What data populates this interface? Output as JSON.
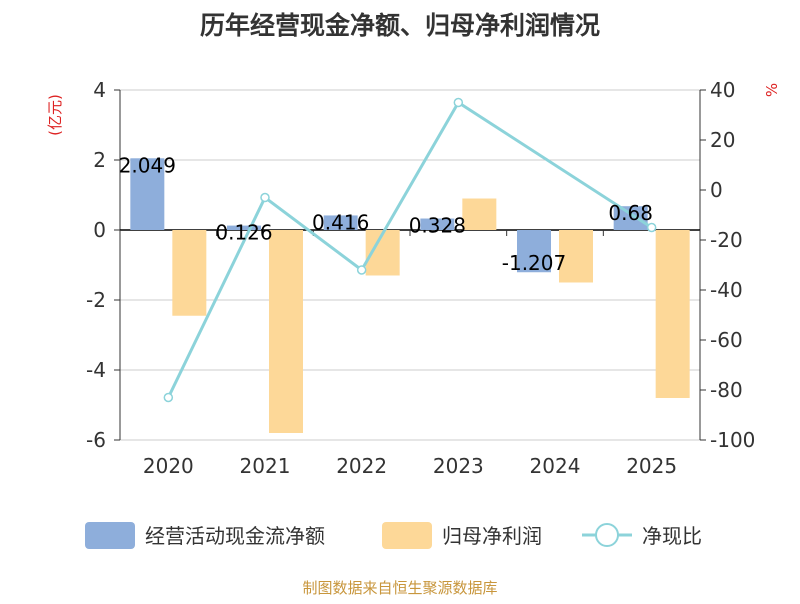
{
  "chart_data": {
    "type": "bar",
    "title": "历年经营现金净额、归母净利润情况",
    "categories": [
      "2020",
      "2021",
      "2022",
      "2023",
      "2024",
      "2025"
    ],
    "left_axis": {
      "unit": "(亿元)",
      "range": [
        -6,
        4
      ],
      "ticks": [
        "4",
        "2",
        "0",
        "-2",
        "-4",
        "-6"
      ]
    },
    "right_axis": {
      "unit": "%",
      "range": [
        -100,
        40
      ],
      "ticks": [
        "40",
        "20",
        "0",
        "-20",
        "-40",
        "-60",
        "-80",
        "-100"
      ]
    },
    "series": [
      {
        "name": "经营活动现金流净额",
        "kind": "bar",
        "axis": "left",
        "color": "#8eaedb",
        "values": [
          2.049,
          0.126,
          0.416,
          0.328,
          -1.207,
          0.68
        ],
        "labels": [
          "2.049",
          "0.126",
          "0.416",
          "0.328",
          "-1.207",
          "0.68"
        ]
      },
      {
        "name": "归母净利润",
        "kind": "bar",
        "axis": "left",
        "color": "#fdd898",
        "values": [
          -2.45,
          -5.8,
          -1.3,
          0.9,
          -1.5,
          -4.8
        ]
      },
      {
        "name": "净现比",
        "kind": "line",
        "axis": "right",
        "color": "#8cd3da",
        "values": [
          -83,
          -3,
          -32,
          35,
          null,
          -15
        ]
      }
    ],
    "source": "制图数据来自恒生聚源数据库"
  }
}
